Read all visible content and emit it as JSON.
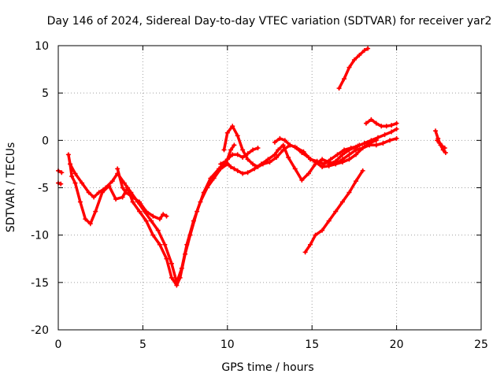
{
  "chart_data": {
    "type": "scatter",
    "title": "Day 146 of 2024, Sidereal Day-to-day VTEC variation (SDTVAR) for receiver yar2",
    "xlabel": "GPS time / hours",
    "ylabel": "SDTVAR / TECUs",
    "xlim": [
      0,
      25
    ],
    "ylim": [
      -20,
      10
    ],
    "xticks": [
      0,
      5,
      10,
      15,
      20,
      25
    ],
    "yticks": [
      -20,
      -15,
      -10,
      -5,
      0,
      5,
      10
    ],
    "grid": true,
    "legend": "none",
    "marker": "plus",
    "color": "#ff0000",
    "series": [
      {
        "x": [
          0.0,
          0.2
        ],
        "y": [
          -3.2,
          -3.4
        ]
      },
      {
        "x": [
          0.0,
          0.15
        ],
        "y": [
          -4.5,
          -4.6
        ]
      },
      {
        "x": [
          0.6,
          0.7,
          0.8,
          1.0,
          1.3,
          1.6,
          1.9,
          2.2,
          2.6,
          3.0,
          3.4,
          3.8,
          4.1,
          4.4,
          4.8,
          5.2,
          5.6,
          6.0,
          6.4,
          6.7,
          7.0,
          7.2,
          7.5,
          7.8,
          8.2,
          8.6,
          9.0,
          9.5,
          10.0,
          10.2,
          10.4
        ],
        "y": [
          -1.5,
          -2.5,
          -3.8,
          -4.5,
          -6.5,
          -8.3,
          -8.8,
          -7.5,
          -5.5,
          -4.8,
          -6.2,
          -6.0,
          -5.0,
          -6.5,
          -7.5,
          -8.5,
          -10.0,
          -11.0,
          -12.5,
          -14.5,
          -15.3,
          -14.5,
          -12.0,
          -10.0,
          -7.5,
          -5.5,
          -4.0,
          -3.0,
          -2.0,
          -1.0,
          -0.5
        ]
      },
      {
        "x": [
          0.7,
          1.0,
          1.4,
          1.8,
          2.1,
          2.4,
          2.8,
          3.2,
          3.5,
          3.9,
          4.3,
          4.7,
          5.1,
          5.5,
          5.9,
          6.3,
          6.7,
          7.0,
          7.3,
          7.6,
          8.0,
          8.4,
          8.8,
          9.2,
          9.6,
          10.0
        ],
        "y": [
          -2.5,
          -3.5,
          -4.5,
          -5.5,
          -6.0,
          -5.5,
          -5.0,
          -4.3,
          -3.5,
          -4.5,
          -5.5,
          -6.5,
          -7.5,
          -8.5,
          -9.5,
          -11.0,
          -13.0,
          -15.0,
          -13.5,
          -11.0,
          -8.5,
          -6.5,
          -5.0,
          -4.0,
          -3.0,
          -2.5
        ]
      },
      {
        "x": [
          3.5,
          3.8,
          4.0,
          4.4,
          4.8,
          5.2,
          5.6,
          6.0,
          6.2,
          6.4
        ],
        "y": [
          -3.0,
          -5.0,
          -5.5,
          -6.0,
          -6.5,
          -7.5,
          -8.0,
          -8.3,
          -7.8,
          -8.0
        ]
      },
      {
        "x": [
          9.6,
          9.9,
          10.2,
          10.4,
          10.6,
          10.9,
          11.2,
          11.6,
          12.0,
          12.4,
          12.8,
          13.0,
          13.3,
          13.6,
          14.0,
          14.4,
          14.8,
          15.2,
          15.6,
          16.0,
          16.4,
          16.8,
          17.2,
          17.6,
          18.0,
          18.4,
          18.8,
          19.2,
          19.6,
          20.0
        ],
        "y": [
          -2.5,
          -2.2,
          -2.8,
          -3.0,
          -3.2,
          -3.5,
          -3.4,
          -3.0,
          -2.5,
          -2.0,
          -1.5,
          -1.0,
          -0.5,
          -1.8,
          -3.0,
          -4.2,
          -3.5,
          -2.5,
          -2.0,
          -2.3,
          -2.5,
          -2.0,
          -1.5,
          -1.0,
          -0.8,
          -0.5,
          -0.5,
          -0.3,
          0.0,
          0.2
        ]
      },
      {
        "x": [
          9.8,
          10.0,
          10.3,
          10.6,
          10.9,
          11.2,
          11.5,
          11.8,
          12.1,
          12.5,
          12.9,
          13.3,
          13.7,
          14.1,
          14.5,
          14.9,
          15.3,
          15.7,
          16.1,
          16.5,
          16.9,
          17.3,
          17.7,
          18.1,
          18.5,
          18.9,
          19.3,
          19.7,
          20.0
        ],
        "y": [
          -1.0,
          0.8,
          1.5,
          0.5,
          -1.0,
          -2.0,
          -2.5,
          -2.8,
          -2.5,
          -2.3,
          -1.8,
          -1.0,
          -0.5,
          -0.8,
          -1.2,
          -2.0,
          -2.2,
          -2.5,
          -2.0,
          -1.5,
          -1.0,
          -0.8,
          -0.6,
          -0.3,
          0.0,
          0.3,
          0.6,
          0.9,
          1.2
        ]
      },
      {
        "x": [
          10.0,
          10.3,
          10.6,
          10.9,
          11.2,
          11.5,
          11.8
        ],
        "y": [
          -2.0,
          -1.5,
          -1.5,
          -1.8,
          -1.4,
          -1.0,
          -0.8
        ]
      },
      {
        "x": [
          12.8,
          13.1,
          13.4,
          13.7,
          14.0,
          14.4,
          14.8,
          15.2,
          15.6,
          16.0,
          16.4,
          16.8,
          17.2,
          17.6,
          18.0,
          18.4,
          18.8
        ],
        "y": [
          -0.2,
          0.2,
          0.0,
          -0.5,
          -0.7,
          -1.3,
          -1.8,
          -2.3,
          -2.8,
          -2.7,
          -2.5,
          -2.3,
          -2.0,
          -1.5,
          -0.8,
          -0.3,
          0.0
        ]
      },
      {
        "x": [
          16.0,
          16.4,
          16.8,
          17.2,
          17.6,
          17.8
        ],
        "y": [
          -2.5,
          -2.2,
          -1.5,
          -1.0,
          -0.7,
          -0.5
        ]
      },
      {
        "x": [
          14.6,
          14.9,
          15.2,
          15.6,
          16.0,
          16.4,
          16.8,
          17.2,
          17.6,
          18.0
        ],
        "y": [
          -11.8,
          -11.0,
          -10.0,
          -9.5,
          -8.5,
          -7.5,
          -6.5,
          -5.5,
          -4.3,
          -3.2
        ]
      },
      {
        "x": [
          16.6,
          16.9,
          17.2,
          17.5,
          17.8,
          18.1,
          18.3
        ],
        "y": [
          5.5,
          6.5,
          7.7,
          8.5,
          9.0,
          9.5,
          9.7
        ]
      },
      {
        "x": [
          18.2,
          18.5,
          18.8,
          19.1,
          19.4,
          19.7,
          20.0
        ],
        "y": [
          1.8,
          2.2,
          1.8,
          1.5,
          1.5,
          1.6,
          1.8
        ]
      },
      {
        "x": [
          22.3,
          22.45,
          22.6,
          22.75,
          22.9
        ],
        "y": [
          1.0,
          0.2,
          -0.5,
          -1.0,
          -1.3
        ]
      },
      {
        "x": [
          22.4,
          22.55,
          22.7,
          22.85
        ],
        "y": [
          0.0,
          -0.3,
          -0.6,
          -0.8
        ]
      }
    ]
  }
}
